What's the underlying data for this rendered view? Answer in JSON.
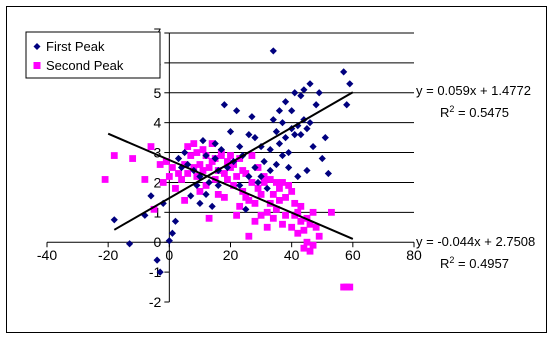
{
  "chart_data": {
    "type": "scatter",
    "title": "",
    "xlabel": "",
    "ylabel": "",
    "xlim": [
      -40,
      80
    ],
    "ylim": [
      -2,
      7
    ],
    "x_ticks": [
      -40,
      -20,
      0,
      20,
      40,
      60,
      80
    ],
    "y_ticks": [
      -2,
      -1,
      0,
      1,
      2,
      3,
      4,
      5,
      6,
      7
    ],
    "grid": "horizontal",
    "legend_position": "top-left",
    "series": [
      {
        "name": "First Peak",
        "color": "#00007f",
        "marker": "diamond",
        "points": [
          [
            -18,
            0.75
          ],
          [
            -13,
            -0.05
          ],
          [
            -8,
            0.9
          ],
          [
            -6,
            1.55
          ],
          [
            -4,
            -0.6
          ],
          [
            -3,
            -1.0
          ],
          [
            -2,
            1.3
          ],
          [
            0,
            0.05
          ],
          [
            1,
            0.3
          ],
          [
            2,
            0.7
          ],
          [
            3,
            2.8
          ],
          [
            4,
            2.5
          ],
          [
            5,
            3.0
          ],
          [
            6,
            2.6
          ],
          [
            7,
            1.55
          ],
          [
            8,
            2.4
          ],
          [
            9,
            1.9
          ],
          [
            10,
            2.2
          ],
          [
            10,
            1.3
          ],
          [
            11,
            3.4
          ],
          [
            12,
            2.9
          ],
          [
            12,
            1.6
          ],
          [
            13,
            2.0
          ],
          [
            14,
            1.2
          ],
          [
            15,
            2.8
          ],
          [
            15,
            3.3
          ],
          [
            16,
            2.4
          ],
          [
            16,
            1.9
          ],
          [
            17,
            3.1
          ],
          [
            18,
            4.6
          ],
          [
            19,
            2.5
          ],
          [
            20,
            3.7
          ],
          [
            21,
            2.7
          ],
          [
            22,
            4.4
          ],
          [
            23,
            1.9
          ],
          [
            23,
            3.2
          ],
          [
            24,
            2.9
          ],
          [
            25,
            1.1
          ],
          [
            26,
            3.6
          ],
          [
            26,
            2.2
          ],
          [
            27,
            4.2
          ],
          [
            28,
            2.5
          ],
          [
            28,
            3.5
          ],
          [
            29,
            2.0
          ],
          [
            30,
            2.2
          ],
          [
            30,
            3.2
          ],
          [
            31,
            2.7
          ],
          [
            32,
            1.8
          ],
          [
            33,
            3.1
          ],
          [
            33,
            2.4
          ],
          [
            34,
            4.1
          ],
          [
            34,
            6.4
          ],
          [
            35,
            2.6
          ],
          [
            35,
            3.7
          ],
          [
            36,
            4.4
          ],
          [
            36,
            3.3
          ],
          [
            37,
            4.0
          ],
          [
            37,
            2.9
          ],
          [
            38,
            3.5
          ],
          [
            38,
            4.7
          ],
          [
            39,
            3.0
          ],
          [
            39,
            2.5
          ],
          [
            40,
            3.8
          ],
          [
            40,
            4.4
          ],
          [
            41,
            3.6
          ],
          [
            41,
            5.0
          ],
          [
            42,
            2.2
          ],
          [
            42,
            3.9
          ],
          [
            43,
            3.6
          ],
          [
            43,
            4.9
          ],
          [
            44,
            4.1
          ],
          [
            44,
            5.1
          ],
          [
            45,
            3.8
          ],
          [
            45,
            2.4
          ],
          [
            46,
            4.0
          ],
          [
            46,
            5.3
          ],
          [
            47,
            3.2
          ],
          [
            48,
            4.6
          ],
          [
            49,
            5.0
          ],
          [
            50,
            2.8
          ],
          [
            51,
            3.5
          ],
          [
            52,
            2.3
          ],
          [
            57,
            5.7
          ],
          [
            58,
            4.6
          ],
          [
            59,
            5.3
          ]
        ]
      },
      {
        "name": "Second Peak",
        "color": "#ff00ff",
        "marker": "square",
        "points": [
          [
            -21,
            2.1
          ],
          [
            -18,
            2.9
          ],
          [
            -12,
            2.8
          ],
          [
            -8,
            2.1
          ],
          [
            -6,
            3.2
          ],
          [
            -5,
            1.1
          ],
          [
            -3,
            2.6
          ],
          [
            -2,
            2.0
          ],
          [
            -1,
            2.7
          ],
          [
            0,
            2.2
          ],
          [
            1,
            2.5
          ],
          [
            2,
            1.8
          ],
          [
            3,
            2.3
          ],
          [
            4,
            2.1
          ],
          [
            5,
            2.6
          ],
          [
            5,
            1.4
          ],
          [
            6,
            3.2
          ],
          [
            6,
            2.3
          ],
          [
            7,
            2.9
          ],
          [
            8,
            2.5
          ],
          [
            8,
            3.3
          ],
          [
            9,
            2.2
          ],
          [
            9,
            3.0
          ],
          [
            10,
            2.6
          ],
          [
            10,
            1.7
          ],
          [
            11,
            2.4
          ],
          [
            11,
            3.1
          ],
          [
            12,
            2.9
          ],
          [
            12,
            1.9
          ],
          [
            13,
            2.5
          ],
          [
            13,
            0.8
          ],
          [
            14,
            2.7
          ],
          [
            14,
            3.3
          ],
          [
            15,
            2.1
          ],
          [
            15,
            2.8
          ],
          [
            16,
            1.6
          ],
          [
            16,
            2.4
          ],
          [
            17,
            2.9
          ],
          [
            17,
            3.0
          ],
          [
            18,
            2.3
          ],
          [
            18,
            1.5
          ],
          [
            19,
            2.7
          ],
          [
            19,
            2.1
          ],
          [
            20,
            2.5
          ],
          [
            20,
            2.9
          ],
          [
            21,
            1.9
          ],
          [
            21,
            2.6
          ],
          [
            22,
            0.9
          ],
          [
            22,
            2.2
          ],
          [
            23,
            1.2
          ],
          [
            23,
            2.8
          ],
          [
            24,
            2.4
          ],
          [
            24,
            1.7
          ],
          [
            25,
            1.5
          ],
          [
            25,
            2.3
          ],
          [
            26,
            0.2
          ],
          [
            26,
            1.4
          ],
          [
            27,
            2.0
          ],
          [
            27,
            2.9
          ],
          [
            28,
            1.3
          ],
          [
            28,
            0.7
          ],
          [
            29,
            2.5
          ],
          [
            29,
            1.8
          ],
          [
            30,
            0.9
          ],
          [
            30,
            1.6
          ],
          [
            31,
            2.2
          ],
          [
            31,
            2.0
          ],
          [
            32,
            1.0
          ],
          [
            32,
            0.5
          ],
          [
            33,
            1.3
          ],
          [
            33,
            2.1
          ],
          [
            34,
            1.6
          ],
          [
            34,
            0.8
          ],
          [
            35,
            2.0
          ],
          [
            35,
            1.1
          ],
          [
            36,
            1.8
          ],
          [
            36,
            1.4
          ],
          [
            37,
            0.6
          ],
          [
            37,
            2.0
          ],
          [
            38,
            1.5
          ],
          [
            38,
            0.9
          ],
          [
            39,
            1.9
          ],
          [
            40,
            1.7
          ],
          [
            40,
            0.5
          ],
          [
            41,
            0.9
          ],
          [
            41,
            1.3
          ],
          [
            42,
            1.0
          ],
          [
            42,
            0.3
          ],
          [
            43,
            0.7
          ],
          [
            43,
            1.2
          ],
          [
            44,
            0.4
          ],
          [
            44,
            -0.2
          ],
          [
            45,
            0.8
          ],
          [
            45,
            0.0
          ],
          [
            46,
            -0.3
          ],
          [
            46,
            0.6
          ],
          [
            47,
            -0.1
          ],
          [
            47,
            1.0
          ],
          [
            48,
            0.5
          ],
          [
            49,
            0.2
          ],
          [
            53,
            1.0
          ],
          [
            57,
            -1.5
          ],
          [
            58,
            -1.5
          ],
          [
            59,
            -1.5
          ]
        ]
      }
    ],
    "trendlines": [
      {
        "series": "First Peak",
        "slope": 0.059,
        "intercept": 1.4772,
        "x_range": [
          -18,
          60
        ],
        "color": "#000000",
        "equation": "y = 0.059x + 1.4772",
        "r2_label": "R",
        "r2_value": " = 0.5475"
      },
      {
        "series": "Second Peak",
        "slope": -0.044,
        "intercept": 2.7508,
        "x_range": [
          -20,
          60
        ],
        "color": "#000000",
        "equation": "y = -0.044x + 2.7508",
        "r2_label": "R",
        "r2_value": " = 0.4957"
      }
    ]
  },
  "legend": {
    "items": [
      {
        "label": "First Peak",
        "color": "#00007f",
        "marker": "diamond"
      },
      {
        "label": "Second Peak",
        "color": "#ff00ff",
        "marker": "square"
      }
    ]
  },
  "labels": {
    "sup_2": "2"
  }
}
